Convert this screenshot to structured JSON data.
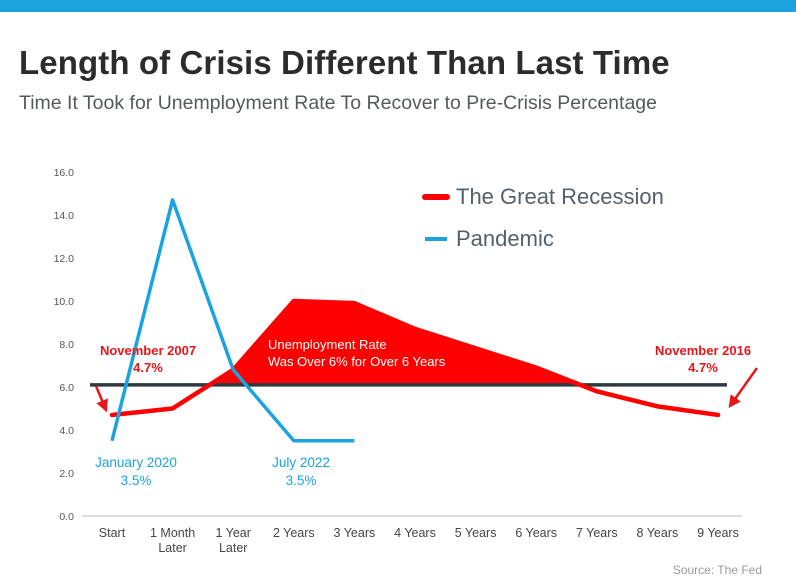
{
  "title": "Length of Crisis Different Than Last Time",
  "subtitle": "Time It Took for Unemployment Rate To Recover to Pre-Crisis Percentage",
  "source": "Source: The Fed",
  "colors": {
    "accent_bar": "#1ba3e0",
    "great_recession": "#ff0000",
    "pandemic": "#1ba3e0",
    "threshold_line": "#2f3a40",
    "annotation_red": "#e8161b",
    "annotation_blue": "#1ba3e0"
  },
  "chart_data": {
    "type": "line",
    "categories": [
      "Start",
      "1 Month\nLater",
      "1 Year\nLater",
      "2 Years",
      "3 Years",
      "4 Years",
      "5 Years",
      "6 Years",
      "7 Years",
      "8 Years",
      "9 Years"
    ],
    "ylim": [
      0,
      16
    ],
    "yticks": [
      "0.0",
      "2.0",
      "4.0",
      "6.0",
      "8.0",
      "10.0",
      "12.0",
      "14.0",
      "16.0"
    ],
    "grid": false,
    "legend_position": "top-right",
    "series": [
      {
        "name": "The Great Recession",
        "color": "#ff0000",
        "values": [
          4.7,
          5.0,
          6.8,
          10.0,
          9.9,
          8.7,
          7.8,
          6.9,
          5.8,
          5.1,
          4.7
        ]
      },
      {
        "name": "Pandemic",
        "color": "#1ba3e0",
        "values": [
          3.5,
          14.7,
          6.8,
          3.5,
          3.5,
          null,
          null,
          null,
          null,
          null,
          null
        ]
      }
    ],
    "reference_line": {
      "value": 6.1
    },
    "annotations": {
      "nov2007": {
        "line1": "November 2007",
        "line2": "4.7%"
      },
      "nov2016": {
        "line1": "November 2016",
        "line2": "4.7%"
      },
      "jan2020": {
        "line1": "January 2020",
        "line2": "3.5%"
      },
      "jul2022": {
        "line1": "July 2022",
        "line2": "3.5%"
      },
      "area_label": {
        "line1": "Unemployment Rate",
        "line2": "Was Over 6% for Over 6 Years"
      }
    }
  }
}
